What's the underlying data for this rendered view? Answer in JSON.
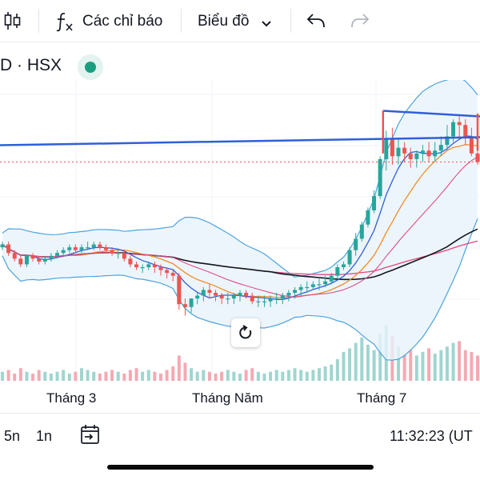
{
  "toolbar": {
    "indicators_label": "Các chỉ báo",
    "chart_type_label": "Biểu đồ",
    "icons": [
      "candles-icon",
      "fx-icon",
      "chevron-down-icon",
      "undo-icon",
      "redo-icon"
    ]
  },
  "symbol": {
    "label": "D · HSX"
  },
  "x_axis": {
    "labels": [
      "Tháng 3",
      "Tháng Năm",
      "Tháng 7"
    ]
  },
  "bottom_bar": {
    "range_5d": "5n",
    "range_1d": "1n",
    "time": "11:32:23 (UT"
  },
  "colors": {
    "up": "#26a69a",
    "down": "#ef5350",
    "trendline": "#2f5fd9",
    "ma_black": "#131722",
    "ma_red": "#e2467a",
    "ma_orange": "#f28c28",
    "ma_blue": "#2f5fd9",
    "bb_band": "#4aa3df",
    "bb_fill": "#e8f2fb",
    "bb_mid": "#e24c86",
    "bb_upper2": "#3a89d4"
  },
  "chart_data": {
    "type": "candlestick",
    "price": {
      "open": [
        104,
        105,
        102,
        100,
        98,
        101,
        100,
        99,
        100,
        101,
        102,
        103,
        104,
        103,
        104,
        104,
        105,
        104,
        103,
        102,
        102,
        100,
        98,
        97,
        97,
        98,
        97,
        96,
        95,
        94,
        84,
        83,
        86,
        87,
        89,
        88,
        87,
        86,
        86,
        87,
        88,
        87,
        85,
        85,
        85,
        86,
        86,
        87,
        88,
        89,
        90,
        90,
        91,
        91,
        92,
        94,
        97,
        98,
        103,
        107,
        112,
        117,
        122,
        135,
        142,
        136,
        139,
        137,
        135,
        137,
        138,
        136,
        138,
        140,
        143,
        148,
        147,
        143,
        137
      ],
      "high": [
        106,
        106,
        103,
        101,
        101,
        102,
        101,
        101,
        102,
        103,
        104,
        105,
        105,
        105,
        106,
        106,
        106,
        105,
        104,
        103,
        103,
        101,
        99,
        98,
        99,
        99,
        98,
        97,
        96,
        95,
        86,
        86,
        88,
        90,
        91,
        89,
        88,
        88,
        88,
        89,
        89,
        88,
        87,
        87,
        87,
        88,
        88,
        89,
        90,
        91,
        92,
        92,
        93,
        94,
        95,
        98,
        99,
        104,
        109,
        113,
        118,
        124,
        136,
        145,
        146,
        142,
        141,
        139,
        138,
        140,
        141,
        141,
        143,
        147,
        149,
        150,
        149,
        146,
        139
      ],
      "low": [
        103,
        101,
        99,
        97,
        97,
        99,
        98,
        98,
        99,
        100,
        101,
        102,
        102,
        102,
        103,
        103,
        103,
        102,
        101,
        100,
        99,
        97,
        96,
        95,
        96,
        95,
        94,
        93,
        92,
        82,
        80,
        81,
        84,
        85,
        86,
        85,
        84,
        84,
        84,
        85,
        86,
        84,
        83,
        83,
        83,
        84,
        84,
        85,
        86,
        87,
        88,
        89,
        89,
        90,
        91,
        93,
        96,
        97,
        101,
        106,
        111,
        116,
        121,
        131,
        133,
        133,
        134,
        132,
        132,
        134,
        134,
        134,
        136,
        138,
        141,
        142,
        140,
        136,
        133
      ],
      "close": [
        105,
        102,
        100,
        98,
        101,
        100,
        99,
        100,
        101,
        102,
        103,
        104,
        103,
        104,
        104,
        105,
        104,
        103,
        102,
        102,
        100,
        98,
        97,
        97,
        98,
        97,
        96,
        95,
        94,
        84,
        83,
        86,
        87,
        89,
        88,
        87,
        86,
        86,
        87,
        88,
        87,
        85,
        85,
        85,
        86,
        86,
        87,
        88,
        89,
        90,
        90,
        91,
        91,
        92,
        94,
        97,
        98,
        103,
        107,
        112,
        117,
        122,
        135,
        142,
        136,
        139,
        137,
        135,
        137,
        138,
        136,
        138,
        140,
        143,
        148,
        147,
        143,
        137,
        134
      ],
      "ylim": [
        70,
        160
      ]
    },
    "volume": [
      5,
      6,
      4,
      7,
      5,
      4,
      6,
      5,
      4,
      5,
      6,
      4,
      5,
      7,
      6,
      5,
      4,
      5,
      6,
      5,
      4,
      6,
      7,
      5,
      6,
      5,
      4,
      6,
      8,
      14,
      10,
      7,
      5,
      6,
      5,
      4,
      5,
      6,
      5,
      4,
      6,
      7,
      5,
      4,
      5,
      6,
      5,
      6,
      7,
      6,
      5,
      6,
      7,
      8,
      9,
      12,
      16,
      18,
      21,
      24,
      20,
      17,
      26,
      31,
      25,
      19,
      15,
      17,
      14,
      16,
      18,
      15,
      17,
      19,
      21,
      22,
      17,
      16,
      14
    ],
    "x_labels": [
      "Tháng 3",
      "Tháng Năm",
      "Tháng 7"
    ]
  }
}
